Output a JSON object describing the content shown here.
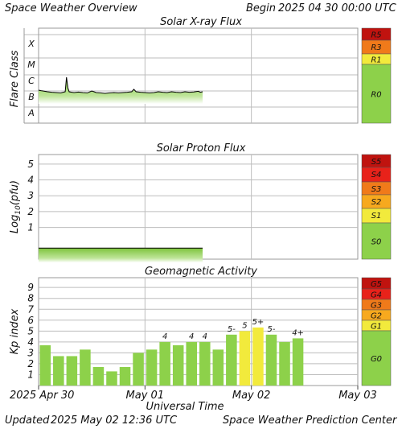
{
  "header": {
    "title": "Space Weather Overview",
    "begin_label": "Begin",
    "begin_time": "2025 04 30 00:00 UTC"
  },
  "footer": {
    "updated_label": "Updated",
    "updated_time": "2025 May 02 12:36 UTC",
    "credit": "Space Weather Prediction Center"
  },
  "colors": {
    "fill_green": "#8dd14a",
    "bar_green": "#8dd14a",
    "bar_yellow": "#f2ea3c",
    "grid": "#bdbdbd",
    "line": "#000000"
  },
  "chart_data": [
    {
      "type": "area",
      "title": "Solar X-ray Flux",
      "ylabel": "Flare Class",
      "y_ticks": [
        "A",
        "B",
        "C",
        "M",
        "X"
      ],
      "scale_colors": [
        {
          "label": "R5",
          "color": "#c0130f"
        },
        {
          "label": "R3",
          "color": "#f07a1a"
        },
        {
          "label": "R1",
          "color": "#f2ea3c"
        },
        {
          "label": "R0",
          "color": "#8dd14a"
        }
      ],
      "x": [
        0,
        0.5,
        1,
        2,
        3,
        4,
        5,
        6,
        6.3,
        6.6,
        6.9,
        7.5,
        8,
        9,
        10,
        11,
        12,
        13,
        14,
        15,
        16,
        17,
        18,
        19,
        20,
        21,
        21.5,
        22,
        23,
        24,
        25,
        26,
        27,
        28,
        29,
        30,
        31,
        32,
        33,
        34,
        35,
        36,
        36.5,
        37
      ],
      "values": [
        2.55,
        2.52,
        2.5,
        2.45,
        2.42,
        2.4,
        2.38,
        2.45,
        3.35,
        2.7,
        2.45,
        2.42,
        2.4,
        2.43,
        2.4,
        2.38,
        2.5,
        2.4,
        2.38,
        2.35,
        2.38,
        2.4,
        2.38,
        2.4,
        2.42,
        2.45,
        2.6,
        2.45,
        2.42,
        2.4,
        2.38,
        2.4,
        2.45,
        2.42,
        2.4,
        2.45,
        2.42,
        2.4,
        2.45,
        2.42,
        2.44,
        2.48,
        2.42,
        2.45
      ],
      "xlim": [
        0,
        72
      ]
    },
    {
      "type": "area",
      "title": "Solar Proton Flux",
      "ylabel": "Log10(pfu)",
      "y_ticks": [
        "1",
        "2",
        "3",
        "4",
        "5"
      ],
      "ylim": [
        -1,
        5.6
      ],
      "scale_colors": [
        {
          "label": "S5",
          "color": "#c0130f"
        },
        {
          "label": "S4",
          "color": "#e8221a"
        },
        {
          "label": "S3",
          "color": "#f07a1a"
        },
        {
          "label": "S2",
          "color": "#f7a91e"
        },
        {
          "label": "S1",
          "color": "#f2ea3c"
        },
        {
          "label": "S0",
          "color": "#8dd14a"
        }
      ],
      "x": [
        0,
        37
      ],
      "values": [
        -0.3,
        -0.3
      ],
      "xlim": [
        0,
        72
      ]
    },
    {
      "type": "bar",
      "title": "Geomagnetic Activity",
      "ylabel": "Kp index",
      "y_ticks": [
        "1",
        "2",
        "3",
        "4",
        "5",
        "6",
        "7",
        "8",
        "9"
      ],
      "ylim": [
        0,
        9.9
      ],
      "scale_colors": [
        {
          "label": "G5",
          "color": "#c0130f"
        },
        {
          "label": "G4",
          "color": "#e8221a"
        },
        {
          "label": "G3",
          "color": "#f07a1a"
        },
        {
          "label": "G2",
          "color": "#f7a91e"
        },
        {
          "label": "G1",
          "color": "#f2ea3c"
        },
        {
          "label": "G0",
          "color": "#8dd14a"
        }
      ],
      "values": [
        3.7,
        2.7,
        2.7,
        3.3,
        1.7,
        1.3,
        1.7,
        3.0,
        3.3,
        4.0,
        3.7,
        4.0,
        4.0,
        3.3,
        4.67,
        5.0,
        5.33,
        4.67,
        4.0,
        4.33
      ],
      "labels": [
        "",
        "",
        "",
        "",
        "",
        "",
        "",
        "",
        "",
        "4",
        "",
        "4",
        "4",
        "",
        "5-",
        "5",
        "5+",
        "5-",
        "",
        "4+"
      ],
      "bar_colors": [
        "green",
        "green",
        "green",
        "green",
        "green",
        "green",
        "green",
        "green",
        "green",
        "green",
        "green",
        "green",
        "green",
        "green",
        "green",
        "yellow",
        "yellow",
        "green",
        "green",
        "green"
      ]
    }
  ],
  "x_axis": {
    "ticks": [
      "2025 Apr 30",
      "May 01",
      "May 02",
      "May 03"
    ],
    "label": "Universal Time"
  }
}
